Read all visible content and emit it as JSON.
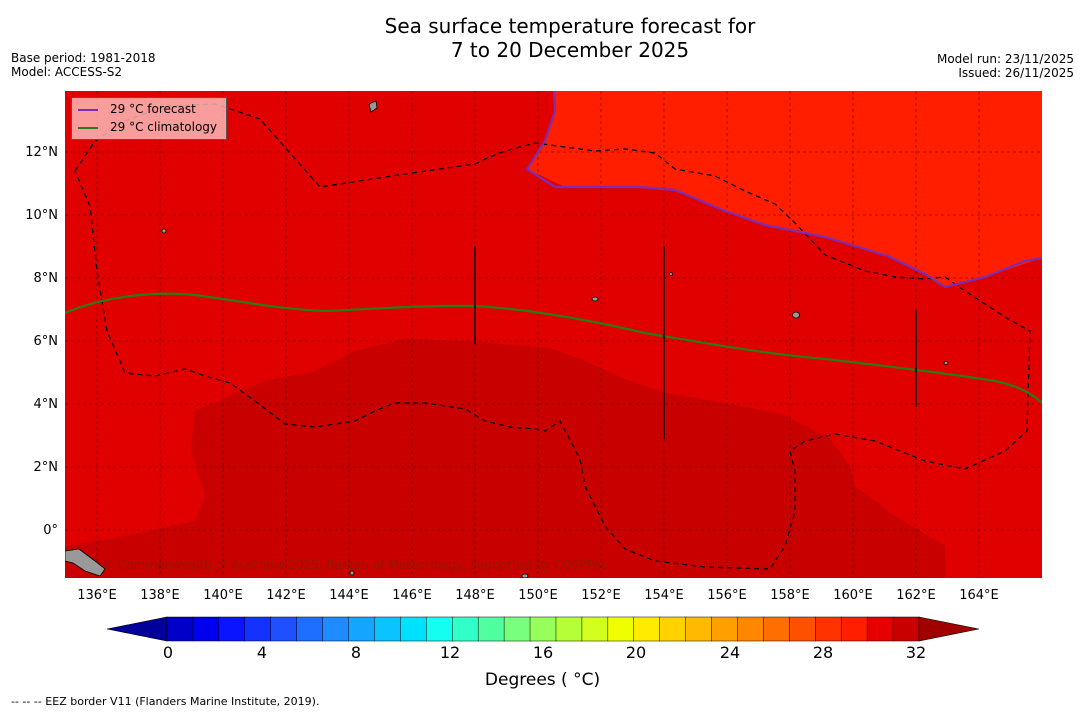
{
  "title": {
    "line1": "Sea surface temperature forecast for",
    "line2": "7 to 20 December 2025"
  },
  "meta": {
    "base_period": "Base period: 1981-2018",
    "model": "Model: ACCESS-S2",
    "model_run": "Model run: 23/11/2025",
    "issued": "Issued: 26/11/2025"
  },
  "map": {
    "lat_labels": [
      "12°N",
      "10°N",
      "8°N",
      "6°N",
      "4°N",
      "2°N",
      "0°"
    ],
    "lon_labels": [
      "136°E",
      "138°E",
      "140°E",
      "142°E",
      "144°E",
      "146°E",
      "148°E",
      "150°E",
      "152°E",
      "154°E",
      "156°E",
      "158°E",
      "160°E",
      "162°E",
      "164°E"
    ],
    "copyright": "© Commonwealth of Australia 2025, Bureau of Meteorology, supported by COSPPac"
  },
  "legend": {
    "forecast_label": "29 °C  forecast",
    "climatology_label": "29 °C  climatology",
    "forecast_color": "#7a2db5",
    "climatology_color": "#2a7a1a"
  },
  "colors": {
    "sst_30": "#e00000",
    "sst_29": "#ff1e00",
    "sst_31": "#c80000",
    "land": "#999999"
  },
  "colorbar": {
    "ticks": [
      "0",
      "4",
      "8",
      "12",
      "16",
      "20",
      "24",
      "28",
      "32"
    ],
    "units": "Degrees ( °C)",
    "colors": [
      "#00009a",
      "#0000c8",
      "#0000ee",
      "#0a14ff",
      "#1432ff",
      "#1e50ff",
      "#1e6eff",
      "#1e8cff",
      "#14a5ff",
      "#0ac3ff",
      "#00e1ff",
      "#14fff0",
      "#32ffc8",
      "#50ffa0",
      "#78ff7d",
      "#96ff5a",
      "#b4ff37",
      "#d2ff1e",
      "#f0ff00",
      "#ffeb00",
      "#ffd200",
      "#ffb900",
      "#ffa000",
      "#ff8700",
      "#ff6e00",
      "#ff5000",
      "#ff3200",
      "#ff1e00",
      "#e60000",
      "#c80000",
      "#a00000"
    ]
  },
  "eez_note": "--  --  -- EEZ border V11 (Flanders Marine Institute, 2019)."
}
